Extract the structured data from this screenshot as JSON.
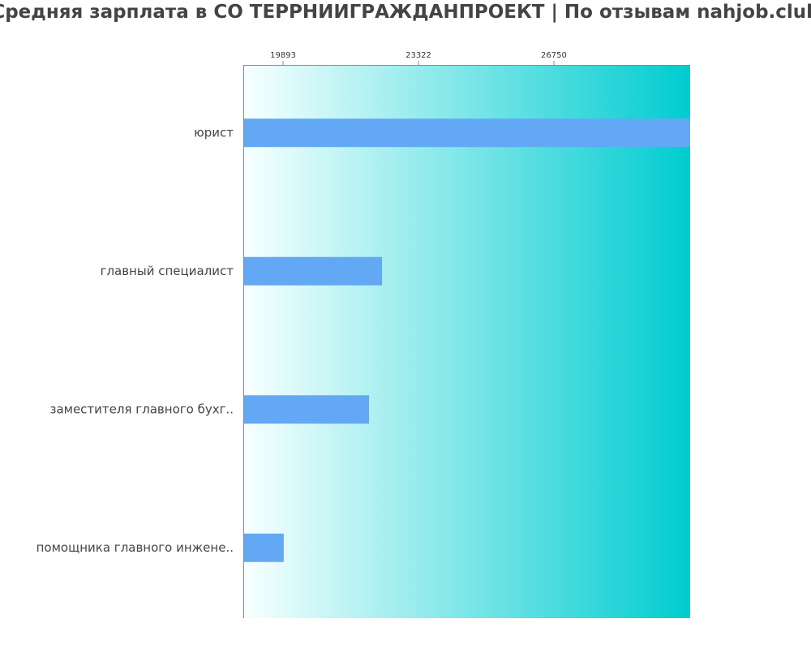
{
  "title": "Средняя зарплата в СО ТЕРРНИИГРАЖДАНПРОЕКТ | По отзывам nahjob.club",
  "colors": {
    "bar": "#63a8f4",
    "background_start": "#f8ffff",
    "background_end": "#00ccd0",
    "text": "#444444"
  },
  "chart_data": {
    "type": "bar",
    "orientation": "horizontal",
    "title": "Средняя зарплата в СО ТЕРРНИИГРАЖДАНПРОЕКТ | По отзывам nahjob.club",
    "categories": [
      "юрист",
      "главный специалист",
      "заместителя главного бухг..",
      "помощника главного инжене.."
    ],
    "values": [
      30200,
      22400,
      22070,
      19910
    ],
    "xticks": [
      "19893",
      "23322",
      "26750"
    ],
    "xtick_values": [
      19893,
      23322,
      26750
    ],
    "xlim": [
      18887,
      30200
    ],
    "axis_position": "top",
    "grid": false,
    "xlabel": "",
    "ylabel": ""
  }
}
